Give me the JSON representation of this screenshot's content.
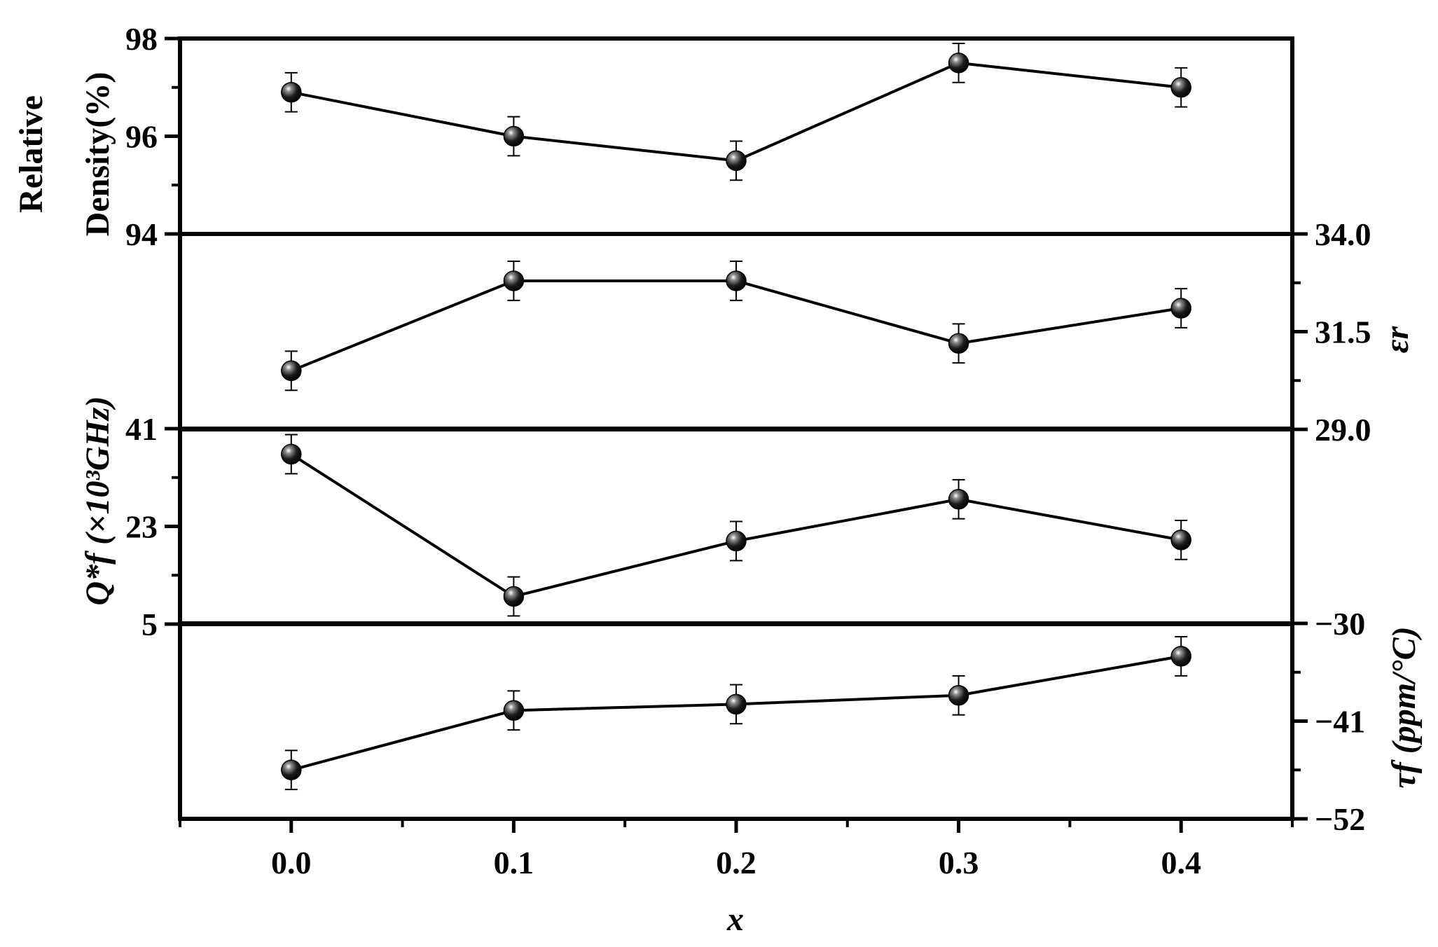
{
  "chart_data": {
    "type": "line",
    "x_values": [
      0.0,
      0.1,
      0.2,
      0.3,
      0.4
    ],
    "x_tick_labels": [
      "0.0",
      "0.1",
      "0.2",
      "0.3",
      "0.4"
    ],
    "xlim": [
      -0.05,
      0.45
    ],
    "xlabel": "x",
    "color": "#000000",
    "panels": [
      {
        "id": "density",
        "ylabel_line1": "Relative",
        "ylabel_line2": "Density(%)",
        "y_axis_side": "left",
        "ylim": [
          94,
          98
        ],
        "yticks": [
          "94",
          "96",
          "98"
        ],
        "values": [
          96.9,
          96.0,
          95.5,
          97.5,
          97.0
        ],
        "error": [
          0.4,
          0.4,
          0.4,
          0.4,
          0.4
        ]
      },
      {
        "id": "permittivity",
        "ylabel": "εr",
        "y_axis_side": "right",
        "ylim": [
          29.0,
          34.0
        ],
        "yticks": [
          "29.0",
          "31.5",
          "34.0"
        ],
        "values": [
          30.5,
          32.8,
          32.8,
          31.2,
          32.1
        ],
        "error": [
          0.5,
          0.5,
          0.5,
          0.5,
          0.5
        ]
      },
      {
        "id": "qf",
        "ylabel": "Q*f (×10³GHz)",
        "y_axis_side": "left",
        "ylim": [
          5,
          41
        ],
        "yticks": [
          "5",
          "23",
          "41"
        ],
        "values": [
          36.3,
          10.1,
          20.3,
          28.0,
          20.5
        ],
        "error": [
          3.6,
          3.6,
          3.6,
          3.6,
          3.6
        ]
      },
      {
        "id": "tauf",
        "ylabel": "τf (ppm/°C)",
        "y_axis_side": "right",
        "ylim": [
          -52,
          -30
        ],
        "yticks": [
          "−52",
          "−41",
          "−30"
        ],
        "values": [
          -46.5,
          -39.8,
          -39.1,
          -38.1,
          -33.7
        ],
        "error": [
          2.2,
          2.2,
          2.2,
          2.2,
          2.2
        ]
      }
    ]
  }
}
